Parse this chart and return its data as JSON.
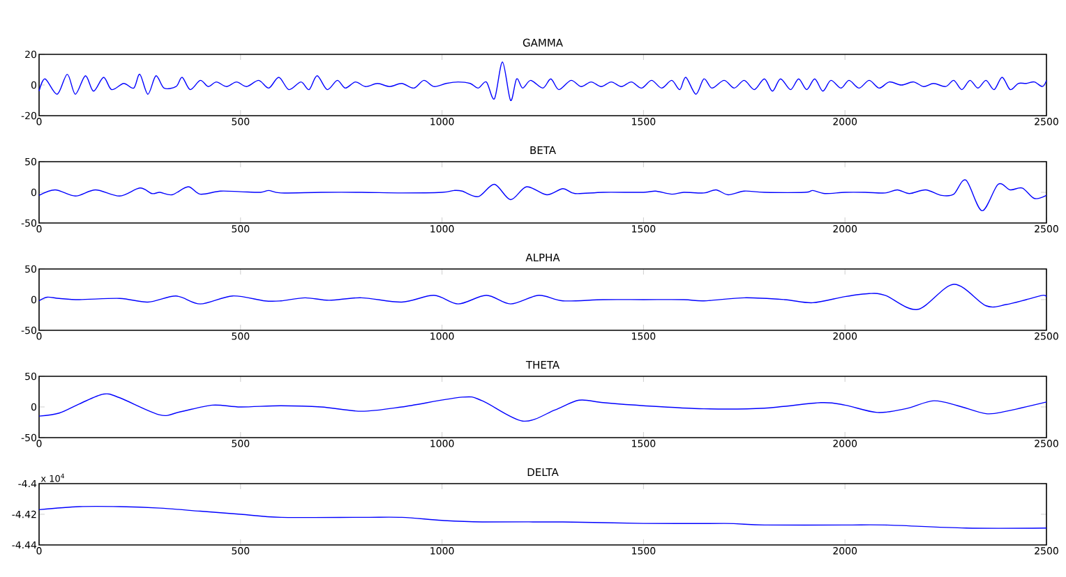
{
  "chart_data": [
    {
      "type": "line",
      "title": "GAMMA",
      "color": "#0000ff",
      "xlim": [
        0,
        2500
      ],
      "ylim": [
        -20,
        20
      ],
      "xticks": [
        0,
        500,
        1000,
        1500,
        2000,
        2500
      ],
      "yticks": [
        -20,
        0,
        20
      ],
      "x": [
        0,
        15,
        45,
        70,
        90,
        115,
        135,
        160,
        180,
        210,
        235,
        250,
        270,
        290,
        310,
        340,
        355,
        375,
        400,
        420,
        440,
        465,
        490,
        515,
        545,
        570,
        595,
        620,
        650,
        670,
        690,
        715,
        740,
        760,
        785,
        810,
        840,
        870,
        900,
        930,
        955,
        980,
        1010,
        1040,
        1070,
        1090,
        1110,
        1130,
        1150,
        1170,
        1185,
        1200,
        1220,
        1250,
        1270,
        1290,
        1320,
        1345,
        1370,
        1395,
        1420,
        1445,
        1470,
        1495,
        1520,
        1545,
        1570,
        1590,
        1605,
        1630,
        1650,
        1670,
        1700,
        1725,
        1750,
        1775,
        1800,
        1820,
        1840,
        1865,
        1885,
        1905,
        1925,
        1945,
        1965,
        1990,
        2010,
        2035,
        2060,
        2085,
        2110,
        2140,
        2170,
        2195,
        2220,
        2250,
        2270,
        2290,
        2310,
        2330,
        2350,
        2370,
        2390,
        2410,
        2430,
        2450,
        2470,
        2490,
        2500
      ],
      "values": [
        -4,
        4,
        -6,
        7,
        -6,
        6,
        -4,
        5,
        -3,
        1,
        -2,
        7,
        -6,
        6,
        -2,
        -1,
        5,
        -3,
        3,
        -1,
        2,
        -1,
        2,
        -1,
        3,
        -2,
        5,
        -3,
        2,
        -3,
        6,
        -3,
        3,
        -2,
        2,
        -1,
        1,
        -1,
        1,
        -2,
        3,
        -1,
        1,
        2,
        1,
        -2,
        2,
        -9,
        15,
        -10,
        4,
        -2,
        3,
        -2,
        4,
        -3,
        3,
        -1,
        2,
        -1,
        2,
        -1,
        2,
        -2,
        3,
        -2,
        3,
        -3,
        5,
        -6,
        4,
        -2,
        3,
        -2,
        3,
        -3,
        4,
        -4,
        4,
        -3,
        4,
        -3,
        4,
        -4,
        3,
        -2,
        3,
        -2,
        3,
        -2,
        2,
        0,
        2,
        -1,
        1,
        -1,
        3,
        -3,
        3,
        -2,
        3,
        -3,
        5,
        -3,
        1,
        1,
        2,
        -1,
        3
      ]
    },
    {
      "type": "line",
      "title": "BETA",
      "color": "#0000ff",
      "xlim": [
        0,
        2500
      ],
      "ylim": [
        -50,
        50
      ],
      "xticks": [
        0,
        500,
        1000,
        1500,
        2000,
        2500
      ],
      "yticks": [
        -50,
        0,
        50
      ],
      "x": [
        0,
        40,
        90,
        140,
        200,
        250,
        280,
        300,
        330,
        370,
        400,
        450,
        500,
        550,
        570,
        600,
        700,
        800,
        900,
        1000,
        1030,
        1050,
        1090,
        1130,
        1170,
        1210,
        1260,
        1300,
        1330,
        1400,
        1500,
        1530,
        1570,
        1600,
        1650,
        1680,
        1710,
        1750,
        1800,
        1900,
        1920,
        1950,
        2000,
        2050,
        2100,
        2130,
        2160,
        2200,
        2240,
        2270,
        2300,
        2340,
        2380,
        2410,
        2440,
        2470,
        2500
      ],
      "values": [
        -5,
        4,
        -6,
        4,
        -6,
        7,
        -2,
        0,
        -4,
        9,
        -3,
        2,
        1,
        0,
        3,
        -1,
        0,
        0,
        -1,
        0,
        3,
        2,
        -7,
        13,
        -12,
        9,
        -4,
        6,
        -2,
        0,
        0,
        2,
        -3,
        0,
        -1,
        4,
        -4,
        2,
        0,
        0,
        3,
        -2,
        0,
        0,
        -1,
        4,
        -2,
        4,
        -5,
        -3,
        20,
        -30,
        13,
        4,
        7,
        -10,
        -5
      ]
    },
    {
      "type": "line",
      "title": "ALPHA",
      "color": "#0000ff",
      "xlim": [
        0,
        2500
      ],
      "ylim": [
        -50,
        50
      ],
      "xticks": [
        0,
        500,
        1000,
        1500,
        2000,
        2500
      ],
      "yticks": [
        -50,
        0,
        50
      ],
      "x": [
        0,
        20,
        50,
        100,
        200,
        270,
        340,
        400,
        480,
        560,
        600,
        660,
        720,
        800,
        900,
        980,
        1040,
        1110,
        1170,
        1240,
        1300,
        1400,
        1500,
        1600,
        1650,
        1750,
        1850,
        1920,
        2000,
        2060,
        2100,
        2180,
        2270,
        2350,
        2400,
        2450,
        2490,
        2500
      ],
      "values": [
        -2,
        4,
        2,
        0,
        2,
        -4,
        6,
        -7,
        6,
        -2,
        -2,
        3,
        -1,
        3,
        -4,
        7,
        -7,
        7,
        -7,
        7,
        -2,
        0,
        0,
        0,
        -2,
        3,
        0,
        -5,
        5,
        10,
        7,
        -16,
        25,
        -10,
        -8,
        0,
        7,
        5
      ]
    },
    {
      "type": "line",
      "title": "THETA",
      "color": "#0000ff",
      "xlim": [
        0,
        2500
      ],
      "ylim": [
        -50,
        50
      ],
      "xticks": [
        0,
        500,
        1000,
        1500,
        2000,
        2500
      ],
      "yticks": [
        -50,
        0,
        50
      ],
      "x": [
        0,
        50,
        100,
        160,
        200,
        300,
        350,
        430,
        500,
        600,
        700,
        800,
        900,
        1050,
        1100,
        1200,
        1280,
        1340,
        1400,
        1500,
        1650,
        1800,
        1940,
        2000,
        2080,
        2150,
        2220,
        2280,
        2350,
        2400,
        2500
      ],
      "values": [
        -15,
        -10,
        5,
        21,
        15,
        -13,
        -8,
        3,
        0,
        2,
        0,
        -7,
        0,
        16,
        10,
        -23,
        -5,
        11,
        7,
        2,
        -3,
        -2,
        7,
        3,
        -9,
        -3,
        10,
        2,
        -11,
        -7,
        8
      ]
    },
    {
      "type": "line",
      "title": "DELTA",
      "color": "#0000ff",
      "xlim": [
        0,
        2500
      ],
      "ylim": [
        -4.44,
        -4.4
      ],
      "xticks": [
        0,
        500,
        1000,
        1500,
        2000,
        2500
      ],
      "yticks": [
        -4.44,
        -4.42,
        -4.4
      ],
      "annotations": [
        "x 10$^{4}$"
      ],
      "x": [
        0,
        100,
        200,
        300,
        400,
        500,
        600,
        800,
        900,
        1000,
        1100,
        1300,
        1500,
        1700,
        1800,
        2000,
        2100,
        2300,
        2500
      ],
      "values": [
        -4.417,
        -4.415,
        -4.415,
        -4.416,
        -4.418,
        -4.42,
        -4.422,
        -4.422,
        -4.422,
        -4.424,
        -4.425,
        -4.425,
        -4.426,
        -4.426,
        -4.427,
        -4.427,
        -4.427,
        -4.429,
        -4.429
      ]
    }
  ]
}
